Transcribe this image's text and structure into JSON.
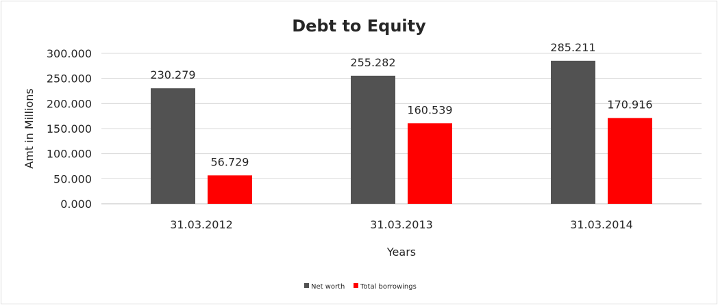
{
  "chart_data": {
    "type": "bar",
    "title": "Debt to Equity",
    "xlabel": "Years",
    "ylabel": "Amt in Millions",
    "categories": [
      "31.03.2012",
      "31.03.2013",
      "31.03.2014"
    ],
    "series": [
      {
        "name": "Net worth",
        "color": "#525252",
        "values": [
          230.279,
          255.282,
          285.211
        ],
        "labels": [
          "230.279",
          "255.282",
          "285.211"
        ]
      },
      {
        "name": "Total borrowings",
        "color": "#ff0000",
        "values": [
          56.729,
          160.539,
          170.916
        ],
        "labels": [
          "56.729",
          "160.539",
          "170.916"
        ]
      }
    ],
    "ylim": [
      0,
      300
    ],
    "yticks": [
      0,
      50,
      100,
      150,
      200,
      250,
      300
    ],
    "ytick_labels": [
      "0.000",
      "50.000",
      "100.000",
      "150.000",
      "200.000",
      "250.000",
      "300.000"
    ],
    "grid": true,
    "legend_position": "bottom"
  }
}
